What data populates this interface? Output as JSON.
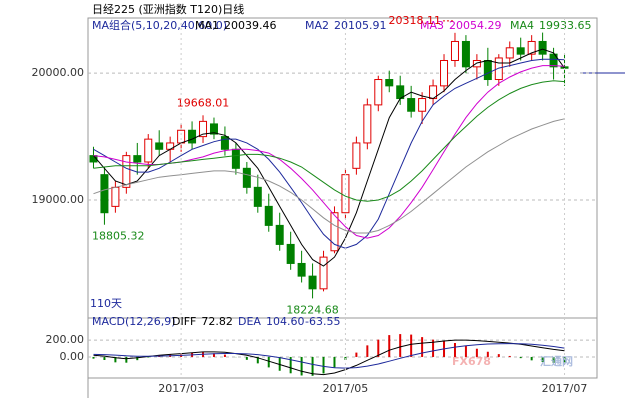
{
  "chart_data": [
    {
      "type": "candlestick",
      "title": "日经225 (亚洲指数 T120)日线",
      "legend_title": "MA组合(5,10,20,40,60,0)",
      "period_label": "110天",
      "ylim": [
        18070,
        20435
      ],
      "yticks": [
        {
          "value": 19000,
          "label": "19000.00"
        },
        {
          "value": 20000,
          "label": "20000.00"
        }
      ],
      "grid": true,
      "up_color": "#e00000",
      "down_color": "#008000",
      "candles": [
        {
          "open": 19350,
          "high": 19420,
          "low": 19250,
          "close": 19300
        },
        {
          "open": 19200,
          "high": 19260,
          "low": 18805.32,
          "close": 18900
        },
        {
          "open": 18950,
          "high": 19150,
          "low": 18900,
          "close": 19100
        },
        {
          "open": 19100,
          "high": 19380,
          "low": 19050,
          "close": 19350
        },
        {
          "open": 19350,
          "high": 19450,
          "low": 19200,
          "close": 19300
        },
        {
          "open": 19300,
          "high": 19520,
          "low": 19250,
          "close": 19480
        },
        {
          "open": 19450,
          "high": 19550,
          "low": 19350,
          "close": 19400
        },
        {
          "open": 19400,
          "high": 19500,
          "low": 19300,
          "close": 19450
        },
        {
          "open": 19450,
          "high": 19600,
          "low": 19380,
          "close": 19550
        },
        {
          "open": 19550,
          "high": 19620,
          "low": 19400,
          "close": 19450
        },
        {
          "open": 19500,
          "high": 19668.01,
          "low": 19450,
          "close": 19620
        },
        {
          "open": 19600,
          "high": 19650,
          "low": 19480,
          "close": 19520
        },
        {
          "open": 19500,
          "high": 19580,
          "low": 19350,
          "close": 19400
        },
        {
          "open": 19400,
          "high": 19450,
          "low": 19200,
          "close": 19250
        },
        {
          "open": 19250,
          "high": 19300,
          "low": 19050,
          "close": 19100
        },
        {
          "open": 19100,
          "high": 19200,
          "low": 18900,
          "close": 18950
        },
        {
          "open": 18950,
          "high": 19050,
          "low": 18750,
          "close": 18800
        },
        {
          "open": 18800,
          "high": 18900,
          "low": 18600,
          "close": 18650
        },
        {
          "open": 18650,
          "high": 18750,
          "low": 18450,
          "close": 18500
        },
        {
          "open": 18500,
          "high": 18600,
          "low": 18350,
          "close": 18400
        },
        {
          "open": 18400,
          "high": 18500,
          "low": 18224.68,
          "close": 18300
        },
        {
          "open": 18300,
          "high": 18600,
          "low": 18280,
          "close": 18550
        },
        {
          "open": 18600,
          "high": 18950,
          "low": 18580,
          "close": 18900
        },
        {
          "open": 18900,
          "high": 19250,
          "low": 18850,
          "close": 19200
        },
        {
          "open": 19250,
          "high": 19500,
          "low": 19200,
          "close": 19450
        },
        {
          "open": 19450,
          "high": 19800,
          "low": 19400,
          "close": 19750
        },
        {
          "open": 19750,
          "high": 19980,
          "low": 19700,
          "close": 19950
        },
        {
          "open": 19950,
          "high": 20020,
          "low": 19850,
          "close": 19900
        },
        {
          "open": 19900,
          "high": 19980,
          "low": 19750,
          "close": 19800
        },
        {
          "open": 19800,
          "high": 19900,
          "low": 19650,
          "close": 19700
        },
        {
          "open": 19700,
          "high": 19850,
          "low": 19600,
          "close": 19800
        },
        {
          "open": 19800,
          "high": 19950,
          "low": 19750,
          "close": 19900
        },
        {
          "open": 19900,
          "high": 20150,
          "low": 19850,
          "close": 20100
        },
        {
          "open": 20100,
          "high": 20318.11,
          "low": 20050,
          "close": 20250
        },
        {
          "open": 20250,
          "high": 20300,
          "low": 20000,
          "close": 20050
        },
        {
          "open": 20050,
          "high": 20150,
          "low": 19950,
          "close": 20100
        },
        {
          "open": 20100,
          "high": 20200,
          "low": 19900,
          "close": 19950
        },
        {
          "open": 19950,
          "high": 20150,
          "low": 19900,
          "close": 20120
        },
        {
          "open": 20120,
          "high": 20250,
          "low": 20050,
          "close": 20200
        },
        {
          "open": 20200,
          "high": 20280,
          "low": 20100,
          "close": 20150
        },
        {
          "open": 20150,
          "high": 20300,
          "low": 20100,
          "close": 20250
        },
        {
          "open": 20250,
          "high": 20320,
          "low": 20100,
          "close": 20150
        },
        {
          "open": 20150,
          "high": 20200,
          "low": 19950,
          "close": 20050
        },
        {
          "open": 20050,
          "high": 20150,
          "low": 19900,
          "close": 20039
        }
      ],
      "annotations": [
        {
          "candle": 10,
          "field": "high"
        },
        {
          "candle": 1,
          "field": "low"
        },
        {
          "candle": 20,
          "field": "low"
        },
        {
          "candle": 33,
          "field": "high"
        }
      ],
      "series": [
        {
          "name": "MA1",
          "legend_value": "20039.46",
          "color": "#000000",
          "values": [
            19350,
            19250,
            19150,
            19120,
            19150,
            19250,
            19350,
            19400,
            19450,
            19480,
            19520,
            19530,
            19510,
            19450,
            19350,
            19250,
            19100,
            18950,
            18800,
            18650,
            18530,
            18480,
            18550,
            18700,
            18900,
            19150,
            19400,
            19650,
            19800,
            19850,
            19820,
            19800,
            19860,
            19950,
            20020,
            20080,
            20100,
            20080,
            20080,
            20120,
            20160,
            20190,
            20160,
            20040
          ]
        },
        {
          "name": "MA2",
          "legend_value": "20105.91",
          "color": "#1e2a9c",
          "values": [
            19400,
            19350,
            19300,
            19250,
            19220,
            19220,
            19250,
            19300,
            19350,
            19400,
            19430,
            19460,
            19480,
            19480,
            19450,
            19400,
            19320,
            19220,
            19100,
            18980,
            18850,
            18730,
            18650,
            18620,
            18650,
            18720,
            18850,
            19050,
            19250,
            19450,
            19620,
            19750,
            19820,
            19880,
            19920,
            19960,
            20000,
            20040,
            20060,
            20080,
            20100,
            20110,
            20110,
            20106
          ]
        },
        {
          "name": "MA3",
          "legend_value": "20054.29",
          "color": "#d000d0",
          "values": [
            19350,
            19340,
            19320,
            19300,
            19290,
            19280,
            19280,
            19290,
            19300,
            19320,
            19340,
            19370,
            19390,
            19400,
            19400,
            19390,
            19370,
            19320,
            19250,
            19170,
            19080,
            18980,
            18880,
            18790,
            18720,
            18700,
            18720,
            18780,
            18870,
            18980,
            19100,
            19240,
            19380,
            19520,
            19650,
            19760,
            19850,
            19920,
            19970,
            20010,
            20040,
            20060,
            20060,
            20054
          ]
        },
        {
          "name": "MA4",
          "legend_value": "19933.65",
          "color": "#1a8a1a",
          "values": [
            19250,
            19260,
            19270,
            19270,
            19270,
            19270,
            19280,
            19290,
            19300,
            19310,
            19320,
            19330,
            19340,
            19350,
            19360,
            19360,
            19350,
            19330,
            19300,
            19260,
            19200,
            19140,
            19080,
            19030,
            19000,
            18990,
            19000,
            19030,
            19080,
            19150,
            19230,
            19320,
            19410,
            19500,
            19580,
            19660,
            19730,
            19790,
            19840,
            19880,
            19910,
            19930,
            19940,
            19934
          ]
        },
        {
          "color": "#909090",
          "values": [
            19050,
            19080,
            19100,
            19120,
            19140,
            19160,
            19180,
            19190,
            19200,
            19210,
            19220,
            19230,
            19230,
            19220,
            19200,
            19180,
            19150,
            19110,
            19060,
            19000,
            18930,
            18860,
            18800,
            18760,
            18740,
            18740,
            18760,
            18800,
            18850,
            18910,
            18980,
            19050,
            19120,
            19190,
            19260,
            19320,
            19380,
            19430,
            19480,
            19520,
            19560,
            19590,
            19620,
            19640
          ]
        }
      ]
    },
    {
      "type": "macd",
      "title": "MACD(12,26,9)",
      "hist_legend_value": "-63.55",
      "categories": [
        null,
        null,
        null,
        null,
        null,
        null,
        null,
        null,
        "2017/03",
        null,
        null,
        null,
        null,
        null,
        null,
        null,
        null,
        null,
        null,
        null,
        null,
        null,
        null,
        "2017/05",
        null,
        null,
        null,
        null,
        null,
        null,
        null,
        null,
        null,
        null,
        null,
        null,
        null,
        null,
        null,
        null,
        null,
        null,
        null,
        "2017/07"
      ],
      "ylim": [
        -250,
        380
      ],
      "yticks": [
        {
          "value": 0,
          "label": "0.00"
        },
        {
          "value": 200,
          "label": "200.00"
        }
      ],
      "hist": [
        -20,
        -36,
        -64,
        -68,
        -38,
        -6,
        20,
        32,
        42,
        50,
        56,
        44,
        28,
        -2,
        -34,
        -76,
        -124,
        -164,
        -194,
        -220,
        -224,
        -196,
        -124,
        -36,
        52,
        138,
        206,
        260,
        272,
        266,
        236,
        206,
        188,
        166,
        134,
        98,
        62,
        34,
        12,
        -14,
        -40,
        -60,
        -70,
        -64
      ],
      "pos_color": "#e00000",
      "neg_color": "#008000",
      "series": [
        {
          "name": "DIFF",
          "legend_value": "72.82",
          "color": "#000000",
          "values": [
            20,
            10,
            -10,
            -20,
            -10,
            5,
            20,
            30,
            40,
            50,
            60,
            60,
            55,
            40,
            20,
            -10,
            -50,
            -90,
            -130,
            -170,
            -200,
            -210,
            -190,
            -150,
            -100,
            -40,
            20,
            80,
            120,
            150,
            165,
            175,
            190,
            200,
            200,
            195,
            185,
            175,
            165,
            150,
            130,
            110,
            90,
            73
          ]
        },
        {
          "name": "DEA",
          "legend_value": "104.60",
          "color": "#1e2a9c",
          "values": [
            30,
            28,
            22,
            14,
            9,
            8,
            10,
            14,
            19,
            25,
            32,
            38,
            41,
            41,
            37,
            28,
            12,
            -8,
            -33,
            -60,
            -88,
            -112,
            -128,
            -132,
            -126,
            -109,
            -83,
            -50,
            -16,
            17,
            47,
            72,
            96,
            117,
            133,
            146,
            154,
            158,
            159,
            157,
            150,
            140,
            125,
            105
          ]
        }
      ],
      "watermark": [
        "FX678",
        "汇通网"
      ]
    }
  ]
}
